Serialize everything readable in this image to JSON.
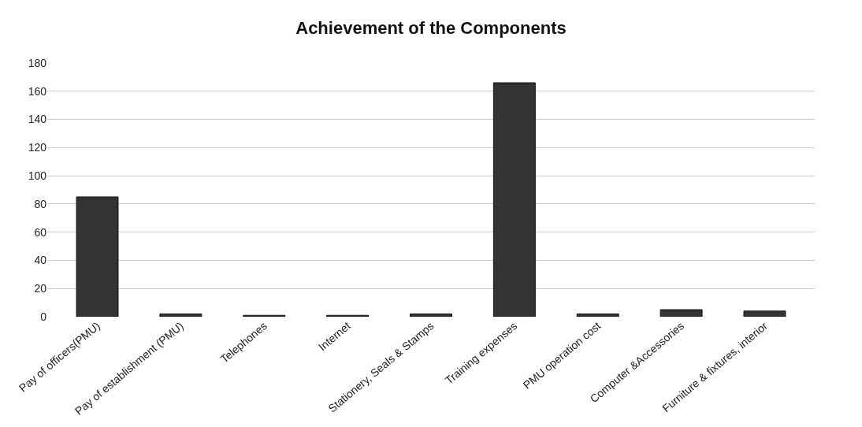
{
  "chart_data": {
    "type": "bar",
    "title": "Achievement of the Components",
    "categories": [
      "Pay of officers(PMU)",
      "Pay of establishment (PMU)",
      "Telephones",
      "Internet",
      "Stationery, Seals & Stamps",
      "Training expenses",
      "PMU operation cost",
      "Computer &Accessories",
      "Furniture & fixtures, interior"
    ],
    "values": [
      85,
      2,
      1,
      1,
      2,
      166,
      2,
      5,
      4
    ],
    "color": "#333333",
    "ylim": [
      0,
      180
    ],
    "yticks": [
      0,
      20,
      40,
      60,
      80,
      100,
      120,
      140,
      160,
      180
    ],
    "grid": "y"
  }
}
